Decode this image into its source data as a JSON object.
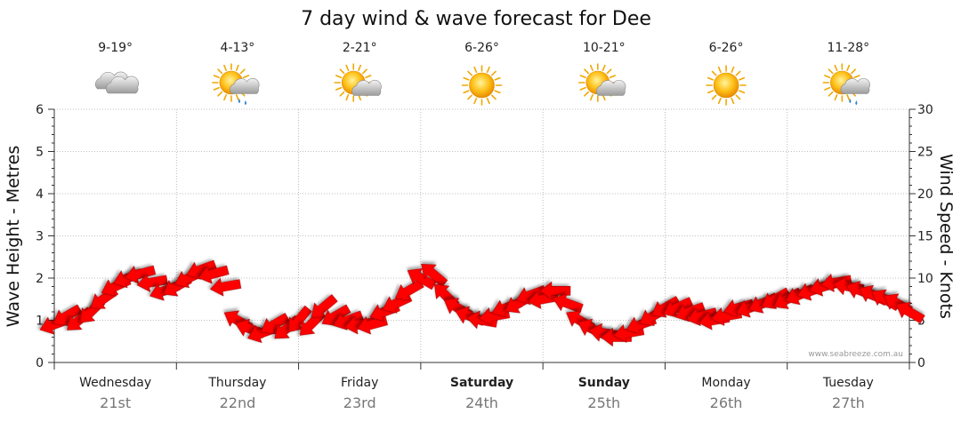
{
  "chart_data": {
    "type": "line",
    "title": "7 day wind & wave forecast for Dee",
    "ylabel_left": "Wave Height - Metres",
    "ylabel_right": "Wind Speed - Knots",
    "ylim_left": [
      0,
      6
    ],
    "ylim_right": [
      0,
      30
    ],
    "yticks_left": [
      "0",
      "1",
      "2",
      "3",
      "4",
      "5",
      "6"
    ],
    "yticks_right": [
      "0",
      "5",
      "10",
      "15",
      "20",
      "25",
      "30"
    ],
    "grid": true,
    "credit": "www.seabreeze.com.au",
    "days": [
      {
        "day": "Wednesday",
        "date": "21st",
        "temp": "9-19°",
        "icon": "cloudy-icon",
        "weekend": false
      },
      {
        "day": "Thursday",
        "date": "22nd",
        "temp": "4-13°",
        "icon": "sun-cloud-rain-icon",
        "weekend": false
      },
      {
        "day": "Friday",
        "date": "23rd",
        "temp": "2-21°",
        "icon": "sun-cloud-icon",
        "weekend": false
      },
      {
        "day": "Saturday",
        "date": "24th",
        "temp": "6-26°",
        "icon": "sunny-icon",
        "weekend": true
      },
      {
        "day": "Sunday",
        "date": "25th",
        "temp": "10-21°",
        "icon": "sun-cloud-icon",
        "weekend": true
      },
      {
        "day": "Monday",
        "date": "26th",
        "temp": "6-26°",
        "icon": "sunny-icon",
        "weekend": false
      },
      {
        "day": "Tuesday",
        "date": "27th",
        "temp": "11-28°",
        "icon": "sun-cloud-rain-icon",
        "weekend": false
      }
    ],
    "series": [
      {
        "type": "wind-arrows",
        "unit": "knots",
        "x_days": [
          0.0,
          0.1,
          0.2,
          0.3,
          0.4,
          0.5,
          0.6,
          0.7,
          0.8,
          0.9,
          1.0,
          1.1,
          1.2,
          1.3,
          1.4,
          1.5,
          1.6,
          1.7,
          1.8,
          1.9,
          2.0,
          2.1,
          2.2,
          2.3,
          2.4,
          2.5,
          2.6,
          2.7,
          2.8,
          2.9,
          3.0,
          3.1,
          3.2,
          3.3,
          3.4,
          3.5,
          3.6,
          3.7,
          3.8,
          3.9,
          4.0,
          4.1,
          4.2,
          4.3,
          4.4,
          4.5,
          4.6,
          4.7,
          4.8,
          4.9,
          5.0,
          5.1,
          5.2,
          5.3,
          5.4,
          5.5,
          5.6,
          5.7,
          5.8,
          5.9,
          6.0,
          6.1,
          6.2,
          6.3,
          6.4,
          6.5,
          6.6,
          6.7,
          6.8,
          6.9,
          7.0
        ],
        "values": [
          4.5,
          5.5,
          5.0,
          6.0,
          7.5,
          9.0,
          10.0,
          10.5,
          9.5,
          8.5,
          9.0,
          10.0,
          11.0,
          10.5,
          9.0,
          5.0,
          4.0,
          3.5,
          4.5,
          4.0,
          5.0,
          4.5,
          6.5,
          5.5,
          5.0,
          4.5,
          4.5,
          6.0,
          7.0,
          8.5,
          10.0,
          10.5,
          8.0,
          6.5,
          5.5,
          5.0,
          5.5,
          6.5,
          7.0,
          8.0,
          7.5,
          8.5,
          7.0,
          5.0,
          4.0,
          3.5,
          3.0,
          3.5,
          4.5,
          5.5,
          6.5,
          6.5,
          6.0,
          5.5,
          5.0,
          5.5,
          6.5,
          6.5,
          7.0,
          7.5,
          7.5,
          8.0,
          8.5,
          9.0,
          9.5,
          9.0,
          8.5,
          8.0,
          7.5,
          7.0,
          6.0
        ],
        "bearing_deg": [
          70,
          60,
          50,
          45,
          55,
          65,
          70,
          75,
          80,
          70,
          60,
          65,
          70,
          75,
          80,
          120,
          110,
          70,
          60,
          50,
          40,
          45,
          50,
          60,
          70,
          80,
          75,
          70,
          65,
          60,
          120,
          130,
          135,
          120,
          110,
          100,
          80,
          70,
          60,
          70,
          80,
          90,
          110,
          120,
          115,
          100,
          90,
          80,
          70,
          60,
          60,
          65,
          70,
          75,
          80,
          80,
          75,
          70,
          65,
          60,
          60,
          65,
          70,
          75,
          80,
          100,
          110,
          115,
          120,
          120,
          120
        ]
      }
    ]
  }
}
